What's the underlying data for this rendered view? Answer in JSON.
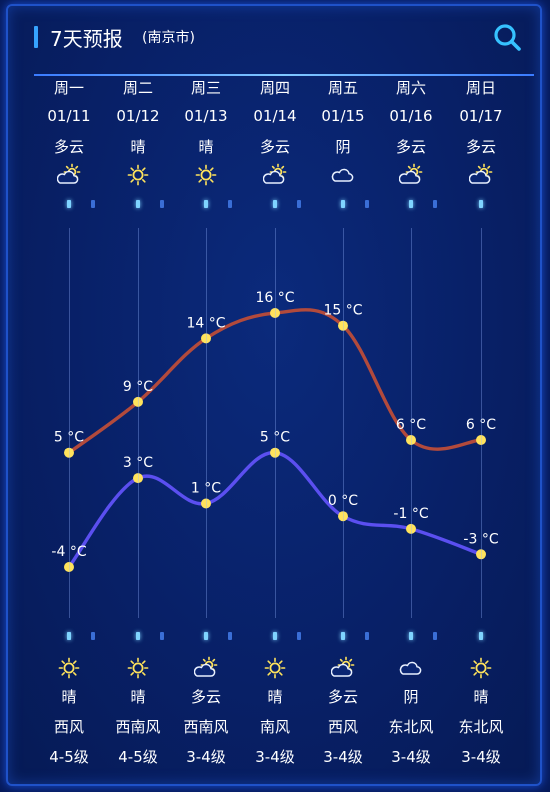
{
  "header": {
    "title": "7天预报",
    "city": "(南京市)"
  },
  "days": [
    {
      "weekday": "周一",
      "date": "01/11",
      "day_weather": "多云",
      "day_icon": "partly-cloudy-icon",
      "high": 5,
      "low": -4,
      "night_weather": "晴",
      "night_icon": "sun-icon",
      "wind_dir": "西风",
      "wind_level": "4-5级"
    },
    {
      "weekday": "周二",
      "date": "01/12",
      "day_weather": "晴",
      "day_icon": "sun-icon",
      "high": 9,
      "low": 3,
      "night_weather": "晴",
      "night_icon": "sun-icon",
      "wind_dir": "西南风",
      "wind_level": "4-5级"
    },
    {
      "weekday": "周三",
      "date": "01/13",
      "day_weather": "晴",
      "day_icon": "sun-icon",
      "high": 14,
      "low": 1,
      "night_weather": "多云",
      "night_icon": "partly-cloudy-icon",
      "wind_dir": "西南风",
      "wind_level": "3-4级"
    },
    {
      "weekday": "周四",
      "date": "01/14",
      "day_weather": "多云",
      "day_icon": "partly-cloudy-icon",
      "high": 16,
      "low": 5,
      "night_weather": "晴",
      "night_icon": "sun-icon",
      "wind_dir": "南风",
      "wind_level": "3-4级"
    },
    {
      "weekday": "周五",
      "date": "01/15",
      "day_weather": "阴",
      "day_icon": "cloud-icon",
      "high": 15,
      "low": 0,
      "night_weather": "多云",
      "night_icon": "partly-cloudy-icon",
      "wind_dir": "西风",
      "wind_level": "3-4级"
    },
    {
      "weekday": "周六",
      "date": "01/16",
      "day_weather": "多云",
      "day_icon": "partly-cloudy-icon",
      "high": 6,
      "low": -1,
      "night_weather": "阴",
      "night_icon": "cloud-icon",
      "wind_dir": "东北风",
      "wind_level": "3-4级"
    },
    {
      "weekday": "周日",
      "date": "01/17",
      "day_weather": "多云",
      "day_icon": "partly-cloudy-icon",
      "high": 6,
      "low": -3,
      "night_weather": "晴",
      "night_icon": "sun-icon",
      "wind_dir": "东北风",
      "wind_level": "3-4级"
    }
  ],
  "unit": "°C",
  "colors": {
    "high_line": "#b24a3c",
    "low_line": "#5b4ff0",
    "point": "#ffe35c",
    "sun": "#ffe35c",
    "cloud": "#e8f0ff"
  },
  "chart_data": {
    "type": "line",
    "categories": [
      "01/11",
      "01/12",
      "01/13",
      "01/14",
      "01/15",
      "01/16",
      "01/17"
    ],
    "series": [
      {
        "values": [
          5,
          9,
          14,
          16,
          15,
          6,
          6
        ]
      },
      {
        "values": [
          -4,
          3,
          1,
          5,
          0,
          -1,
          -3
        ]
      }
    ],
    "ylim": [
      -4,
      16
    ]
  }
}
